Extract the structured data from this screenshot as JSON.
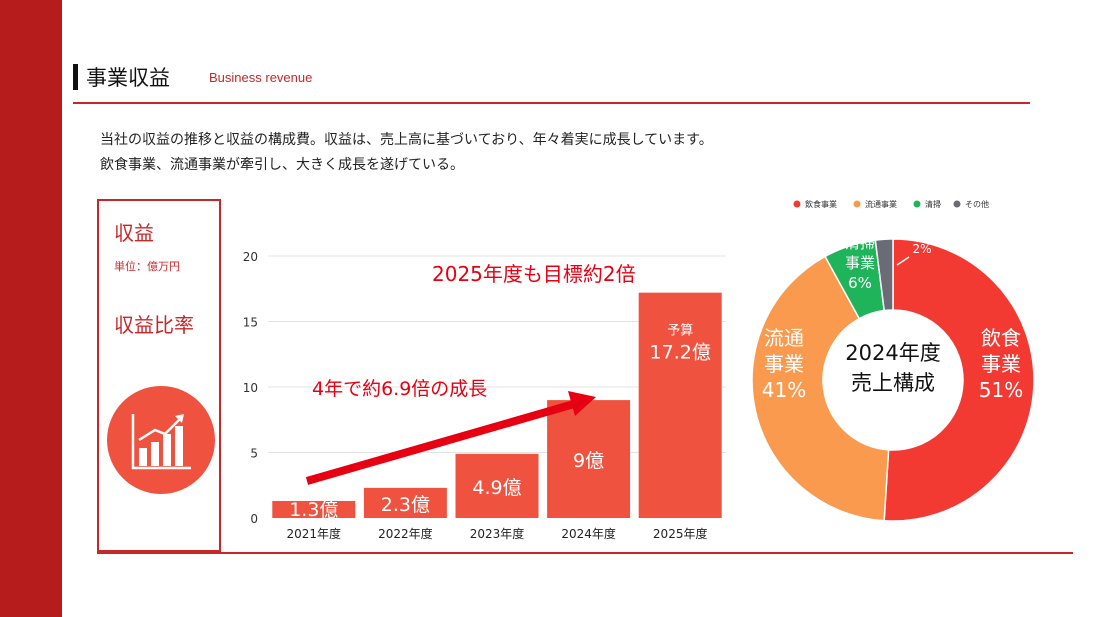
{
  "header": {
    "title": "事業収益",
    "subtitle": "Business revenue"
  },
  "description": [
    "当社の収益の推移と収益の構成費。収益は、売上高に基づいており、年々着実に成長しています。",
    "飲食事業、流通事業が牽引し、大きく成長を遂げている。"
  ],
  "panel": {
    "title": "収益",
    "unit": "単位：億万円",
    "ratio_title": "収益比率",
    "icon": "growth-chart-icon"
  },
  "colors": {
    "accent": "#c62828",
    "bar": "#ef5340",
    "arrow": "#e60012",
    "food": "#f23a33",
    "distribution": "#f99a4f",
    "cleaning": "#1fb35a",
    "other": "#6b6b78"
  },
  "chart_data": [
    {
      "type": "bar",
      "title": "",
      "categories": [
        "2021年度",
        "2022年度",
        "2023年度",
        "2024年度",
        "2025年度"
      ],
      "values": [
        1.3,
        2.3,
        4.9,
        9,
        17.2
      ],
      "labels": [
        "1.3億",
        "2.3億",
        "4.9億",
        "9億",
        "17.2億"
      ],
      "budget_prefix": "予算",
      "yticks": [
        0,
        5,
        10,
        15,
        20
      ],
      "ylim": [
        0,
        20
      ],
      "xlabel": "",
      "ylabel": "",
      "grid": true,
      "annotations": [
        "4年で約6.9倍の成長",
        "2025年度も目標約2倍"
      ]
    },
    {
      "type": "pie",
      "title": "2024年度売上構成",
      "center_lines": [
        "2024年度",
        "売上構成"
      ],
      "legend_position": "top",
      "slices": [
        {
          "name": "飲食事業",
          "label_lines": [
            "飲食",
            "事業"
          ],
          "value": 51,
          "pct": "51%",
          "color": "#f23a33"
        },
        {
          "name": "流通事業",
          "label_lines": [
            "流通",
            "事業"
          ],
          "value": 41,
          "pct": "41%",
          "color": "#f99a4f"
        },
        {
          "name": "清掃",
          "label_lines": [
            "清掃",
            "事業"
          ],
          "value": 6,
          "pct": "6%",
          "color": "#1fb35a"
        },
        {
          "name": "その他",
          "label_lines": [
            "その他"
          ],
          "value": 2,
          "pct": "2%",
          "color": "#6b6b78"
        }
      ]
    }
  ]
}
